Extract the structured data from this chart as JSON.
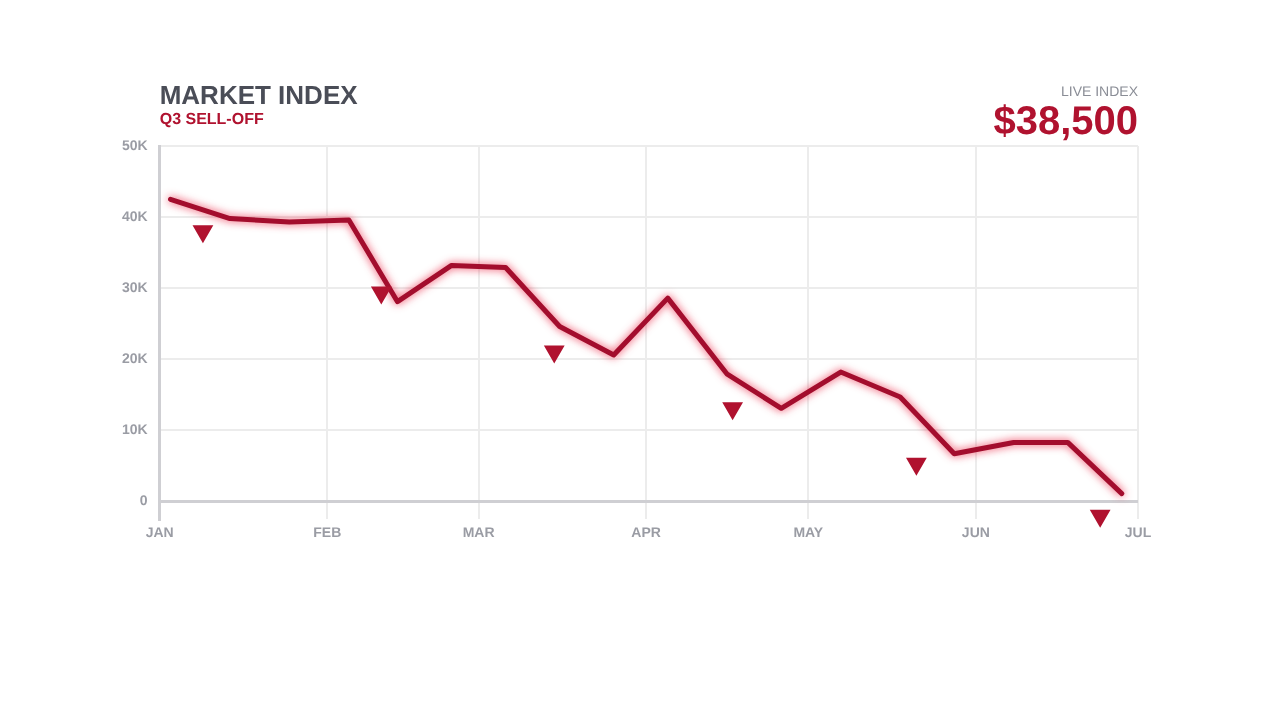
{
  "chart_data": {
    "type": "line",
    "title": "MARKET INDEX",
    "subtitle": "Q3 SELL-OFF",
    "annotations": [
      "LIVE INDEX",
      "$38,500"
    ],
    "xlim": [
      "--01-01",
      "--07-01"
    ],
    "xticks": [
      {
        "value": "--01-01",
        "label": "JAN"
      },
      {
        "value": "--02-01",
        "label": "FEB"
      },
      {
        "value": "--03-01",
        "label": "MAR"
      },
      {
        "value": "--04-01",
        "label": "APR"
      },
      {
        "value": "--05-01",
        "label": "MAY"
      },
      {
        "value": "--06-01",
        "label": "JUN"
      },
      {
        "value": "--07-01",
        "label": "JUL"
      }
    ],
    "ylim": [
      -2500,
      50000
    ],
    "yticks": [
      {
        "value": 0,
        "label": "0"
      },
      {
        "value": 10000,
        "label": "10K"
      },
      {
        "value": 20000,
        "label": "20K"
      },
      {
        "value": 30000,
        "label": "30K"
      },
      {
        "value": 40000,
        "label": "40K"
      },
      {
        "value": 50000,
        "label": "50K"
      }
    ],
    "grid": true,
    "series": [
      {
        "color": "#a30d2d",
        "marker": "none",
        "x": [
          "--01-03",
          "--01-14",
          "--01-25",
          "--02-05",
          "--02-14",
          "--02-24",
          "--03-06",
          "--03-16",
          "--03-26",
          "--04-05",
          "--04-16",
          "--04-26",
          "--05-07",
          "--05-18",
          "--05-28",
          "--06-08",
          "--06-18",
          "--06-28"
        ],
        "values": [
          42500,
          39800,
          39300,
          39600,
          28100,
          33200,
          32900,
          24600,
          20600,
          28600,
          17900,
          13100,
          18200,
          14700,
          6700,
          8300,
          8300,
          1100
        ]
      },
      {
        "type": "scatter",
        "color": "#b0122f",
        "marker": "triangle",
        "x": [
          "--01-09",
          "--02-11",
          "--03-15",
          "--04-17",
          "--05-21",
          "--06-24"
        ],
        "values": [
          38000,
          29400,
          21100,
          13100,
          5300,
          -2000
        ]
      }
    ]
  }
}
